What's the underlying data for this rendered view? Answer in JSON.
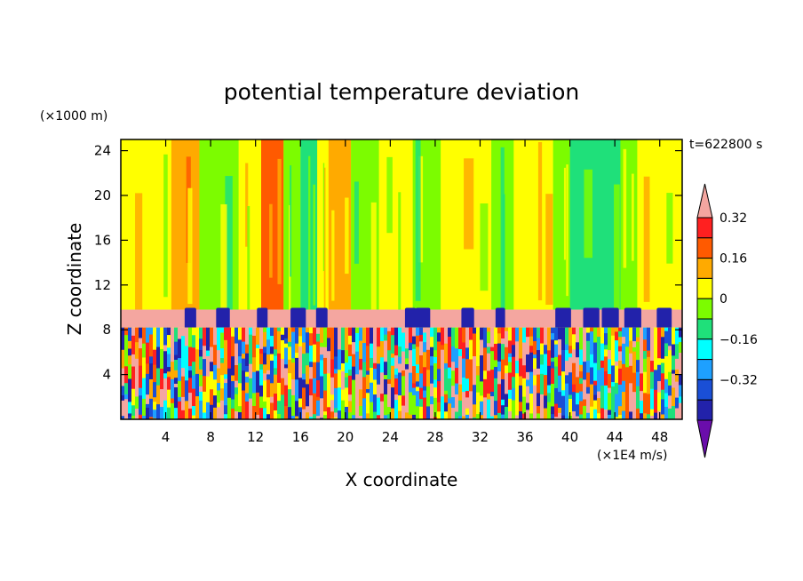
{
  "chart_data": {
    "type": "heatmap",
    "title": "potential temperature deviation",
    "xlabel": "X coordinate",
    "ylabel": "Z coordinate",
    "x_unit_label": "(×1E4 m/s)",
    "y_unit_label": "(×1000 m)",
    "time_label": "t=622800 s",
    "xlim": [
      0,
      50
    ],
    "ylim": [
      0,
      25
    ],
    "x_ticks": [
      {
        "value": 4,
        "label": "4"
      },
      {
        "value": 8,
        "label": "8"
      },
      {
        "value": 12,
        "label": "12"
      },
      {
        "value": 16,
        "label": "16"
      },
      {
        "value": 20,
        "label": "20"
      },
      {
        "value": 24,
        "label": "24"
      },
      {
        "value": 28,
        "label": "28"
      },
      {
        "value": 32,
        "label": "32"
      },
      {
        "value": 36,
        "label": "36"
      },
      {
        "value": 40,
        "label": "40"
      },
      {
        "value": 44,
        "label": "44"
      },
      {
        "value": 48,
        "label": "48"
      }
    ],
    "y_ticks": [
      {
        "value": 4,
        "label": "4"
      },
      {
        "value": 8,
        "label": "8"
      },
      {
        "value": 12,
        "label": "12"
      },
      {
        "value": 16,
        "label": "16"
      },
      {
        "value": 20,
        "label": "20"
      },
      {
        "value": 24,
        "label": "24"
      }
    ],
    "colorbar": {
      "levels": [
        -0.48,
        -0.4,
        -0.32,
        -0.24,
        -0.16,
        -0.08,
        0,
        0.08,
        0.16,
        0.24,
        0.32,
        0.4
      ],
      "colors": [
        "#6a0dab",
        "#2222aa",
        "#1a4fd6",
        "#1ea0ff",
        "#00ffff",
        "#1fe07a",
        "#7cfc00",
        "#ffff00",
        "#ffaa00",
        "#ff5a00",
        "#ff2020",
        "#f4a6a0"
      ],
      "labels": [
        {
          "value": 0.32,
          "label": "0.32"
        },
        {
          "value": 0.16,
          "label": "0.16"
        },
        {
          "value": 0,
          "label": "0"
        },
        {
          "value": -0.16,
          "label": "−0.16"
        },
        {
          "value": -0.32,
          "label": "−0.32"
        }
      ]
    },
    "upper_layer": {
      "z_range": [
        9.8,
        25
      ],
      "background_value": 0.04,
      "columns": [
        {
          "x0": 0,
          "x1": 4.5,
          "value": 0.04
        },
        {
          "x0": 4.5,
          "x1": 7,
          "value": 0.12
        },
        {
          "x0": 7,
          "x1": 10.5,
          "value": -0.04
        },
        {
          "x0": 10.5,
          "x1": 12.5,
          "value": 0.04
        },
        {
          "x0": 12.5,
          "x1": 14.5,
          "value": 0.2
        },
        {
          "x0": 14.5,
          "x1": 16,
          "value": -0.04
        },
        {
          "x0": 16,
          "x1": 17.5,
          "value": -0.12
        },
        {
          "x0": 17.5,
          "x1": 18.5,
          "value": 0.04
        },
        {
          "x0": 18.5,
          "x1": 20.5,
          "value": 0.12
        },
        {
          "x0": 20.5,
          "x1": 23,
          "value": -0.04
        },
        {
          "x0": 23,
          "x1": 26,
          "value": 0.04
        },
        {
          "x0": 26,
          "x1": 28.5,
          "value": -0.04
        },
        {
          "x0": 28.5,
          "x1": 33,
          "value": 0.04
        },
        {
          "x0": 33,
          "x1": 35,
          "value": -0.04
        },
        {
          "x0": 35,
          "x1": 38.5,
          "value": 0.04
        },
        {
          "x0": 38.5,
          "x1": 40,
          "value": -0.04
        },
        {
          "x0": 40,
          "x1": 44.5,
          "value": -0.12
        },
        {
          "x0": 44.5,
          "x1": 46,
          "value": -0.04
        },
        {
          "x0": 46,
          "x1": 50,
          "value": 0.04
        }
      ]
    },
    "inversion_layer": {
      "z_range": [
        8.2,
        9.8
      ],
      "value": 0.44,
      "intrusions_x": [
        6.2,
        9.1,
        12.6,
        15.8,
        17.9,
        25.8,
        26.9,
        30.9,
        33.8,
        39.4,
        41.9,
        43.6,
        45.6,
        48.4
      ],
      "intrusion_value": -0.44
    },
    "boundary_layer": {
      "z_range": [
        0,
        8.2
      ],
      "description_values": [
        -0.44,
        -0.36,
        -0.28,
        -0.2,
        -0.12,
        -0.04,
        0.04,
        0.12,
        0.2,
        0.28,
        0.36,
        0.44
      ]
    }
  }
}
